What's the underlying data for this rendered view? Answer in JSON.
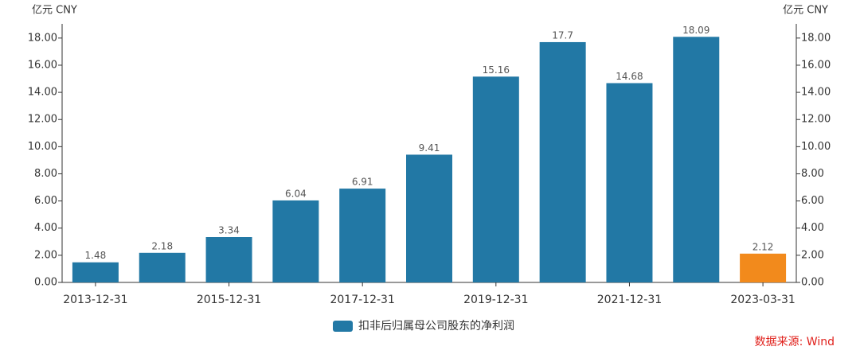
{
  "chart_data": {
    "type": "bar",
    "y_label": "亿元  CNY",
    "y2_label": "亿元  CNY",
    "categories": [
      "2013-12-31",
      null,
      "2015-12-31",
      null,
      "2017-12-31",
      null,
      "2019-12-31",
      null,
      "2021-12-31",
      null,
      "2023-03-31"
    ],
    "series": [
      {
        "name": "扣非后归属母公司股东的净利润",
        "color": "#2278a5",
        "colors": [
          "#2278a5",
          "#2278a5",
          "#2278a5",
          "#2278a5",
          "#2278a5",
          "#2278a5",
          "#2278a5",
          "#2278a5",
          "#2278a5",
          "#2278a5",
          "#f28a1c"
        ],
        "values": [
          1.48,
          2.18,
          3.34,
          6.04,
          6.91,
          9.41,
          15.16,
          17.7,
          14.68,
          18.09,
          2.12
        ]
      }
    ],
    "ylim": [
      0,
      18.09
    ],
    "y2lim": [
      0,
      18.09
    ],
    "yticks": [
      {
        "value": 0,
        "label": "0.00"
      },
      {
        "value": 2,
        "label": "2.00"
      },
      {
        "value": 4,
        "label": "4.00"
      },
      {
        "value": 6,
        "label": "6.00"
      },
      {
        "value": 8,
        "label": "8.00"
      },
      {
        "value": 10,
        "label": "10.00"
      },
      {
        "value": 12,
        "label": "12.00"
      },
      {
        "value": 14,
        "label": "14.00"
      },
      {
        "value": 16,
        "label": "16.00"
      },
      {
        "value": 18,
        "label": "18.00"
      }
    ],
    "y2ticks": [
      {
        "value": 0,
        "label": "0.00"
      },
      {
        "value": 2,
        "label": "2.00"
      },
      {
        "value": 4,
        "label": "4.00"
      },
      {
        "value": 6,
        "label": "6.00"
      },
      {
        "value": 8,
        "label": "8.00"
      },
      {
        "value": 10,
        "label": "10.00"
      },
      {
        "value": 12,
        "label": "12.00"
      },
      {
        "value": 14,
        "label": "14.00"
      },
      {
        "value": 16,
        "label": "16.00"
      },
      {
        "value": 18,
        "label": "18.00"
      }
    ],
    "source": "数据来源: Wind"
  }
}
